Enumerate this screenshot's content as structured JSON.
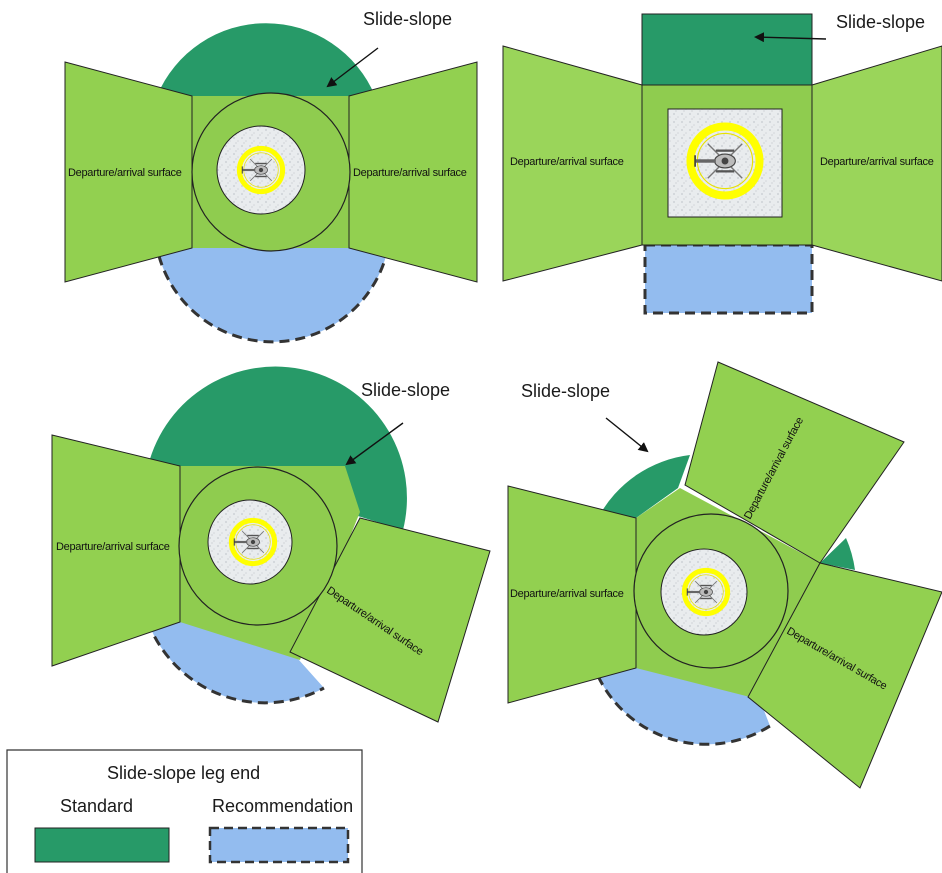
{
  "colors": {
    "standard": "#279a68",
    "recommendation": "#93bcef",
    "surface": "#92d050",
    "surface_light": "#9ad55a",
    "fato": "#8fcc4f",
    "tlof": "#e7eaec",
    "marking_yellow": "#ffff00",
    "outline": "#222222"
  },
  "icons": {
    "helipad": "helicopter-icon",
    "arrow": "arrow-icon"
  },
  "panels": [
    {
      "slide_label": "Slide-slope",
      "surfaces": [
        "Departure/arrival surface",
        "Departure/arrival surface"
      ]
    },
    {
      "slide_label": "Slide-slope",
      "surfaces": [
        "Departure/arrival surface",
        "Departure/arrival surface"
      ]
    },
    {
      "slide_label": "Slide-slope",
      "surfaces": [
        "Departure/arrival surface",
        "Departure/arrival surface"
      ]
    },
    {
      "slide_label": "Slide-slope",
      "surfaces": [
        "Departure/arrival surface",
        "Departure/arrival surface",
        "Departure/arrival surface"
      ]
    }
  ],
  "legend": {
    "title": "Slide-slope leg end",
    "standard_label": "Standard",
    "recommendation_label": "Recommendation"
  }
}
